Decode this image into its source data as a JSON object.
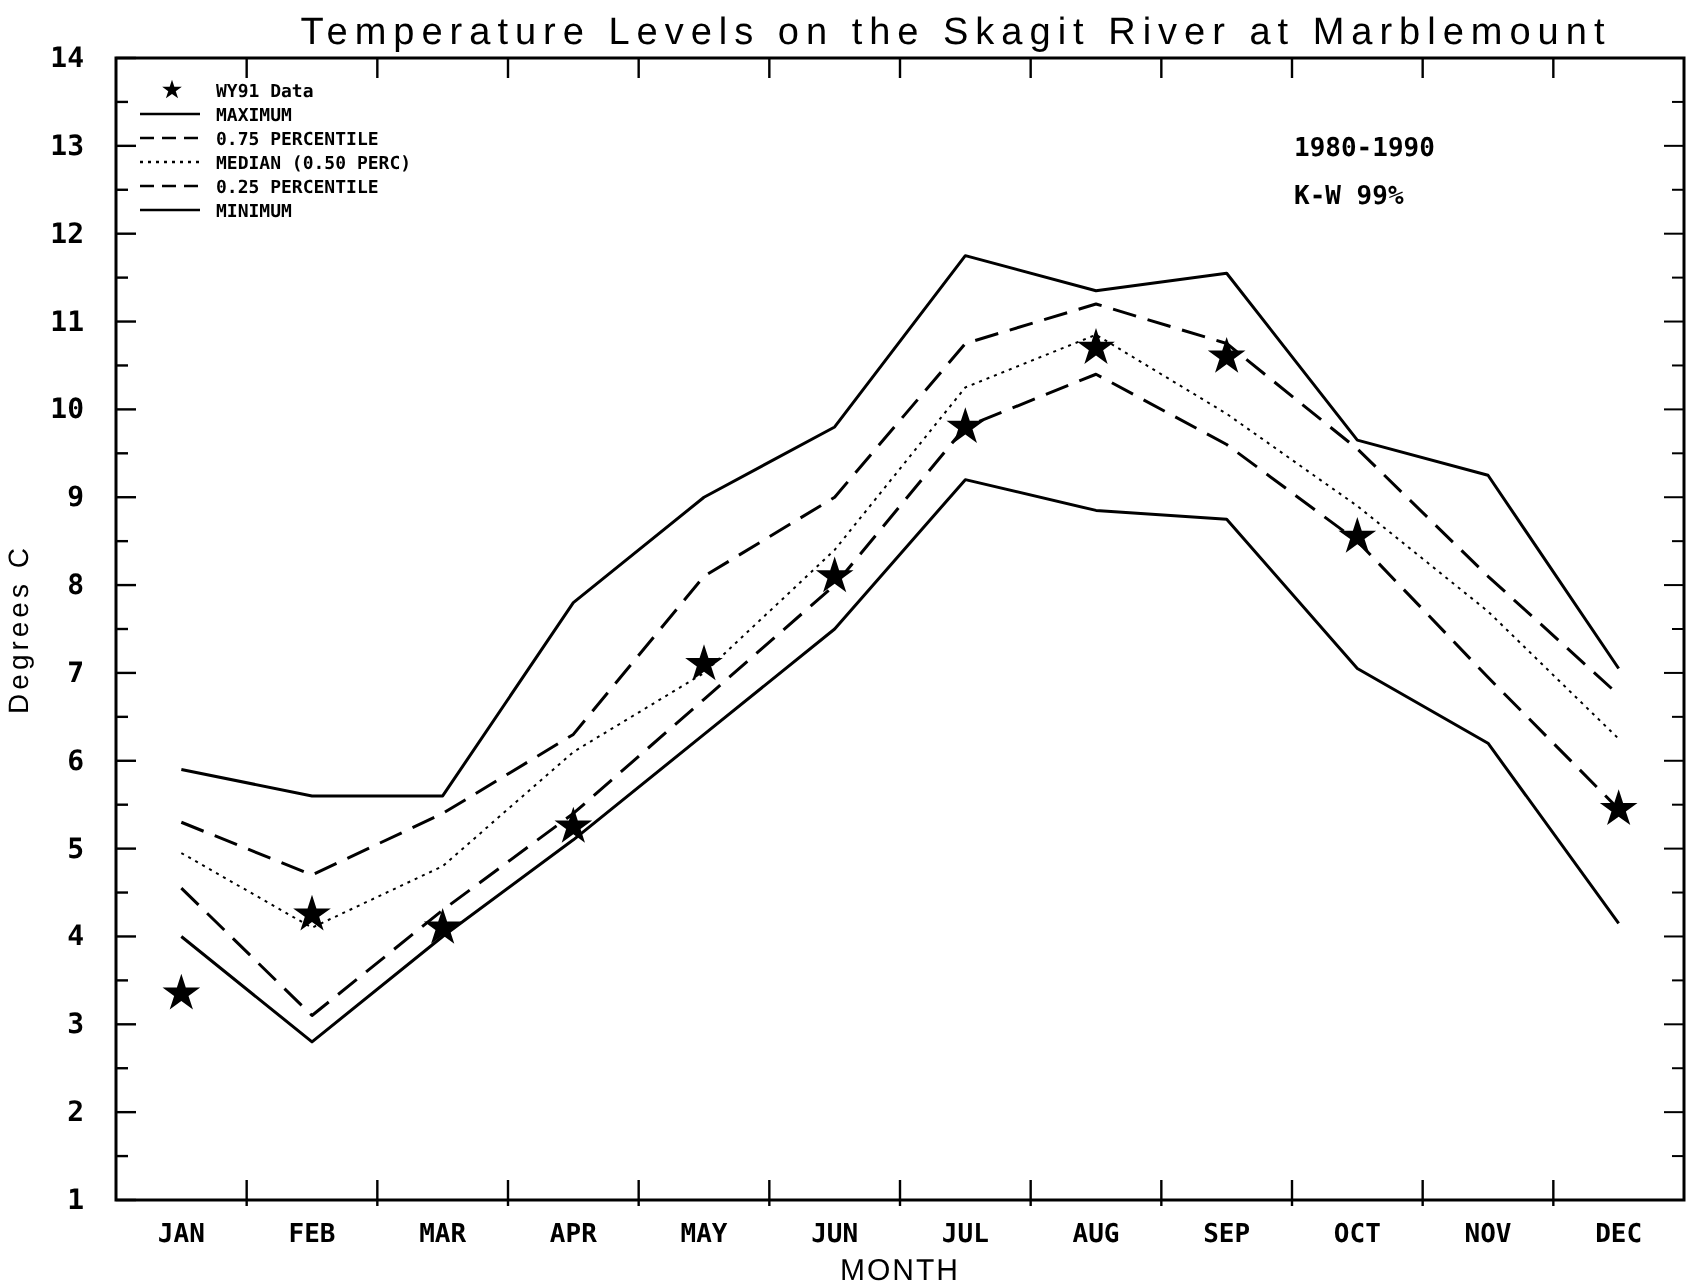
{
  "chart_data": {
    "type": "line",
    "title": "Temperature Levels on the Skagit River at Marblemount",
    "xlabel": "MONTH",
    "ylabel": "Degrees C",
    "categories": [
      "JAN",
      "FEB",
      "MAR",
      "APR",
      "MAY",
      "JUN",
      "JUL",
      "AUG",
      "SEP",
      "OCT",
      "NOV",
      "DEC"
    ],
    "ylim": [
      1,
      14
    ],
    "yticks": [
      1,
      {
        "value": 1.5,
        "label": null
      },
      2,
      {
        "value": 2.5,
        "label": null
      },
      3,
      {
        "value": 3.5,
        "label": null
      },
      4,
      {
        "value": 4.5,
        "label": null
      },
      5,
      {
        "value": 5.5,
        "label": null
      },
      6,
      {
        "value": 6.5,
        "label": null
      },
      7,
      {
        "value": 7.5,
        "label": null
      },
      8,
      {
        "value": 8.5,
        "label": null
      },
      9,
      {
        "value": 9.5,
        "label": null
      },
      10,
      {
        "value": 10.5,
        "label": null
      },
      11,
      {
        "value": 11.5,
        "label": null
      },
      12,
      {
        "value": 12.5,
        "label": null
      },
      13,
      {
        "value": 13.5,
        "label": null
      },
      14
    ],
    "grid": false,
    "legend": "top left",
    "annotations": [
      "1980-1990",
      "K-W 99%"
    ],
    "series": [
      {
        "name": "WY91 Data",
        "type": "scatter",
        "marker": "star",
        "color": "#000000",
        "values": [
          3.35,
          4.25,
          4.1,
          5.25,
          7.1,
          8.1,
          9.8,
          10.7,
          10.6,
          8.55,
          null,
          5.45
        ]
      },
      {
        "name": "MAXIMUM",
        "line_style": "solid",
        "color": "#000000",
        "values": [
          5.9,
          5.6,
          5.6,
          7.8,
          9.0,
          9.8,
          11.75,
          11.35,
          11.55,
          9.65,
          9.25,
          7.05
        ]
      },
      {
        "name": "0.75 PERCENTILE",
        "line_style": "dashed",
        "color": "#000000",
        "values": [
          5.3,
          4.7,
          5.4,
          6.3,
          8.1,
          9.0,
          10.75,
          11.2,
          10.75,
          9.55,
          8.1,
          6.75
        ]
      },
      {
        "name": "MEDIAN (0.50 PERC)",
        "line_style": "dotted",
        "color": "#000000",
        "values": [
          4.95,
          4.1,
          4.8,
          6.1,
          7.0,
          8.4,
          10.25,
          10.85,
          9.95,
          8.9,
          7.7,
          6.25
        ]
      },
      {
        "name": "0.25 PERCENTILE",
        "line_style": "dashed",
        "color": "#000000",
        "values": [
          4.55,
          3.1,
          4.3,
          5.4,
          6.7,
          8.0,
          9.8,
          10.4,
          9.6,
          8.5,
          6.95,
          5.45
        ]
      },
      {
        "name": "MINIMUM",
        "line_style": "solid",
        "color": "#000000",
        "values": [
          4.0,
          2.8,
          4.0,
          5.1,
          6.3,
          7.5,
          9.2,
          8.85,
          8.75,
          7.05,
          6.2,
          4.15
        ]
      }
    ]
  }
}
